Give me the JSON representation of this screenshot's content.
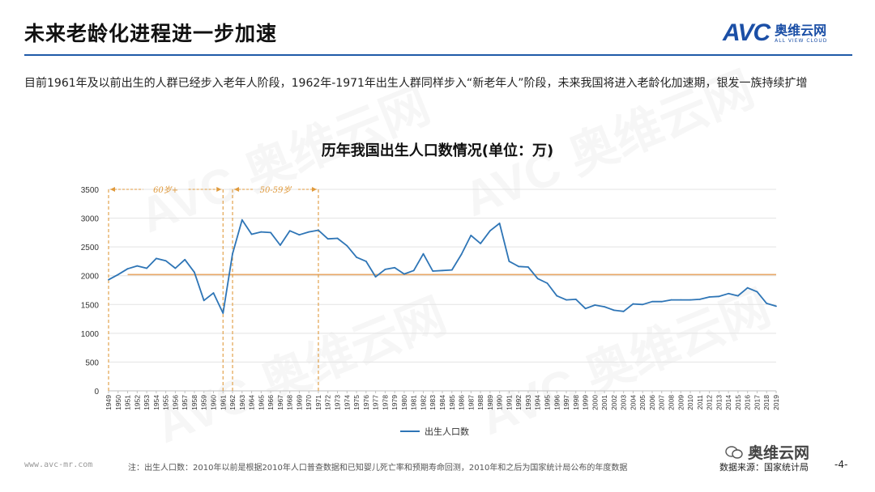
{
  "header": {
    "title": "未来老龄化进程进一步加速",
    "logo_mark": "AVC",
    "logo_cn": "奥维云网",
    "logo_en": "ALL VIEW CLOUD"
  },
  "description": "目前1961年及以前出生的人群已经步入老年人阶段，1962年-1971年出生人群同样步入“新老年人”阶段，未来我国将进入老龄化加速期，银发一族持续扩增",
  "colors": {
    "accent": "#1f5aa8",
    "series": "#2e75b6",
    "reference": "#e8a868",
    "annotation": "#e09a3c"
  },
  "chart_data": {
    "type": "line",
    "title": "历年我国出生人口数情况(单位：万)",
    "xlabel": "",
    "ylabel": "",
    "ylim": [
      0,
      3500
    ],
    "yticks": [
      "0",
      "500",
      "1000",
      "1500",
      "2000",
      "2500",
      "3000",
      "3500"
    ],
    "grid": true,
    "legend_position": "bottom",
    "x": [
      "1949",
      "1950",
      "1951",
      "1952",
      "1953",
      "1954",
      "1955",
      "1956",
      "1957",
      "1958",
      "1959",
      "1960",
      "1961",
      "1962",
      "1963",
      "1964",
      "1965",
      "1966",
      "1967",
      "1968",
      "1969",
      "1970",
      "1971",
      "1972",
      "1973",
      "1974",
      "1975",
      "1976",
      "1977",
      "1978",
      "1979",
      "1980",
      "1981",
      "1982",
      "1983",
      "1984",
      "1985",
      "1986",
      "1987",
      "1988",
      "1989",
      "1990",
      "1991",
      "1992",
      "1993",
      "1994",
      "1995",
      "1996",
      "1997",
      "1998",
      "1999",
      "2000",
      "2001",
      "2002",
      "2003",
      "2004",
      "2005",
      "2006",
      "2007",
      "2008",
      "2009",
      "2010",
      "2011",
      "2012",
      "2013",
      "2014",
      "2015",
      "2016",
      "2017",
      "2018",
      "2019"
    ],
    "series": [
      {
        "name": "出生人口数",
        "values": [
          1930,
          2020,
          2120,
          2170,
          2130,
          2300,
          2260,
          2130,
          2280,
          2060,
          1570,
          1700,
          1350,
          2380,
          2970,
          2720,
          2760,
          2750,
          2530,
          2780,
          2710,
          2760,
          2790,
          2640,
          2650,
          2520,
          2320,
          2250,
          1980,
          2110,
          2140,
          2030,
          2090,
          2380,
          2080,
          2090,
          2100,
          2370,
          2700,
          2560,
          2780,
          2910,
          2250,
          2160,
          2150,
          1950,
          1870,
          1650,
          1580,
          1590,
          1430,
          1490,
          1460,
          1400,
          1380,
          1510,
          1500,
          1550,
          1550,
          1580,
          1580,
          1580,
          1590,
          1630,
          1640,
          1690,
          1650,
          1790,
          1720,
          1520,
          1470
        ]
      }
    ],
    "reference_line": {
      "value": 2020,
      "from": "1951",
      "to": "2019"
    },
    "annotations": [
      {
        "label": "60岁+",
        "from": "1949",
        "to": "1961"
      },
      {
        "label": "50-59岁",
        "from": "1962",
        "to": "1971"
      }
    ]
  },
  "footer": {
    "url": "www.avc-mr.com",
    "note": "注：出生人口数：2010年以前是根据2010年人口普查数据和已知婴儿死亡率和预期寿命回测，2010年和之后为国家统计局公布的年度数据",
    "source": "数据来源：国家统计局",
    "page": "-4-",
    "wechat_account": "奥维云网"
  }
}
